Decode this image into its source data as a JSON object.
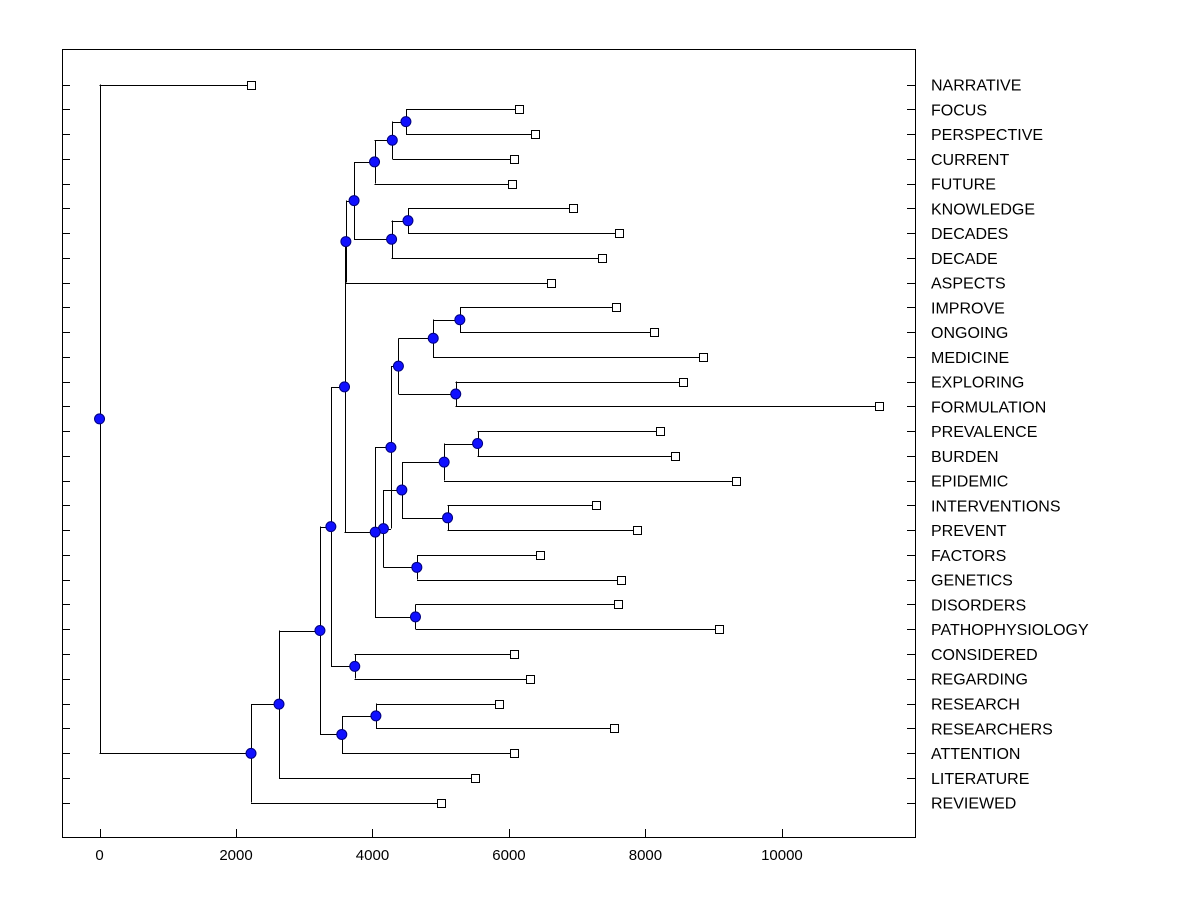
{
  "chart_data": {
    "type": "dendrogram",
    "title": "",
    "xlabel": "",
    "ylabel": "",
    "xlim": [
      -550,
      11950
    ],
    "xticks": [
      0,
      2000,
      4000,
      6000,
      8000,
      10000
    ],
    "grid": false,
    "leaves": [
      {
        "label": "NARRATIVE",
        "value": 2220
      },
      {
        "label": "FOCUS",
        "value": 6140
      },
      {
        "label": "PERSPECTIVE",
        "value": 6380
      },
      {
        "label": "CURRENT",
        "value": 6080
      },
      {
        "label": "FUTURE",
        "value": 6050
      },
      {
        "label": "KNOWLEDGE",
        "value": 6940
      },
      {
        "label": "DECADES",
        "value": 7610
      },
      {
        "label": "DECADE",
        "value": 7360
      },
      {
        "label": "ASPECTS",
        "value": 6620
      },
      {
        "label": "IMPROVE",
        "value": 7570
      },
      {
        "label": "ONGOING",
        "value": 8130
      },
      {
        "label": "MEDICINE",
        "value": 8840
      },
      {
        "label": "EXPLORING",
        "value": 8550
      },
      {
        "label": "FORMULATION",
        "value": 11420
      },
      {
        "label": "PREVALENCE",
        "value": 8220
      },
      {
        "label": "BURDEN",
        "value": 8430
      },
      {
        "label": "EPIDEMIC",
        "value": 9330
      },
      {
        "label": "INTERVENTIONS",
        "value": 7270
      },
      {
        "label": "PREVENT",
        "value": 7880
      },
      {
        "label": "FACTORS",
        "value": 6450
      },
      {
        "label": "GENETICS",
        "value": 7640
      },
      {
        "label": "DISORDERS",
        "value": 7600
      },
      {
        "label": "PATHOPHYSIOLOGY",
        "value": 9080
      },
      {
        "label": "CONSIDERED",
        "value": 6080
      },
      {
        "label": "REGARDING",
        "value": 6310
      },
      {
        "label": "RESEARCH",
        "value": 5860
      },
      {
        "label": "RESEARCHERS",
        "value": 7540
      },
      {
        "label": "ATTENTION",
        "value": 6070
      },
      {
        "label": "LITERATURE",
        "value": 5500
      },
      {
        "label": "REVIEWED",
        "value": 5000
      }
    ],
    "merges": [
      {
        "id": "n1",
        "value": 4490,
        "children": [
          "L1",
          "L2"
        ]
      },
      {
        "id": "n2",
        "value": 4290,
        "children": [
          "n1",
          "L3"
        ]
      },
      {
        "id": "n3",
        "value": 4030,
        "children": [
          "n2",
          "L4"
        ]
      },
      {
        "id": "n4",
        "value": 4520,
        "children": [
          "L5",
          "L6"
        ]
      },
      {
        "id": "n5",
        "value": 4280,
        "children": [
          "n4",
          "L7"
        ]
      },
      {
        "id": "n6",
        "value": 3730,
        "children": [
          "n3",
          "n5"
        ]
      },
      {
        "id": "n7",
        "value": 3610,
        "children": [
          "n6",
          "L8"
        ]
      },
      {
        "id": "n8",
        "value": 5280,
        "children": [
          "L9",
          "L10"
        ]
      },
      {
        "id": "n9",
        "value": 4890,
        "children": [
          "n8",
          "L11"
        ]
      },
      {
        "id": "n10",
        "value": 5220,
        "children": [
          "L12",
          "L13"
        ]
      },
      {
        "id": "n11",
        "value": 4380,
        "children": [
          "n9",
          "n10"
        ]
      },
      {
        "id": "n12",
        "value": 5540,
        "children": [
          "L14",
          "L15"
        ]
      },
      {
        "id": "n13",
        "value": 5050,
        "children": [
          "n12",
          "L16"
        ]
      },
      {
        "id": "n14",
        "value": 5100,
        "children": [
          "L17",
          "L18"
        ]
      },
      {
        "id": "n15",
        "value": 4430,
        "children": [
          "n13",
          "n14"
        ]
      },
      {
        "id": "n16",
        "value": 4650,
        "children": [
          "L19",
          "L20"
        ]
      },
      {
        "id": "n17",
        "value": 4160,
        "children": [
          "n15",
          "n16"
        ]
      },
      {
        "id": "n18",
        "value": 4270,
        "children": [
          "n11",
          "n17"
        ]
      },
      {
        "id": "n19",
        "value": 4630,
        "children": [
          "L21",
          "L22"
        ]
      },
      {
        "id": "n20",
        "value": 4040,
        "children": [
          "n18",
          "n19"
        ]
      },
      {
        "id": "n21",
        "value": 3590,
        "children": [
          "n7",
          "n20"
        ]
      },
      {
        "id": "n22",
        "value": 3740,
        "children": [
          "L23",
          "L24"
        ]
      },
      {
        "id": "n23",
        "value": 3390,
        "children": [
          "n21",
          "n22"
        ]
      },
      {
        "id": "n24",
        "value": 4050,
        "children": [
          "L25",
          "L26"
        ]
      },
      {
        "id": "n25",
        "value": 3550,
        "children": [
          "n24",
          "L27"
        ]
      },
      {
        "id": "n26",
        "value": 3230,
        "children": [
          "n23",
          "n25"
        ]
      },
      {
        "id": "n27",
        "value": 2630,
        "children": [
          "n26",
          "L28"
        ]
      },
      {
        "id": "n28",
        "value": 2220,
        "children": [
          "n27",
          "L29"
        ]
      },
      {
        "id": "n29",
        "value": 0,
        "children": [
          "L0",
          "n28"
        ]
      }
    ]
  }
}
